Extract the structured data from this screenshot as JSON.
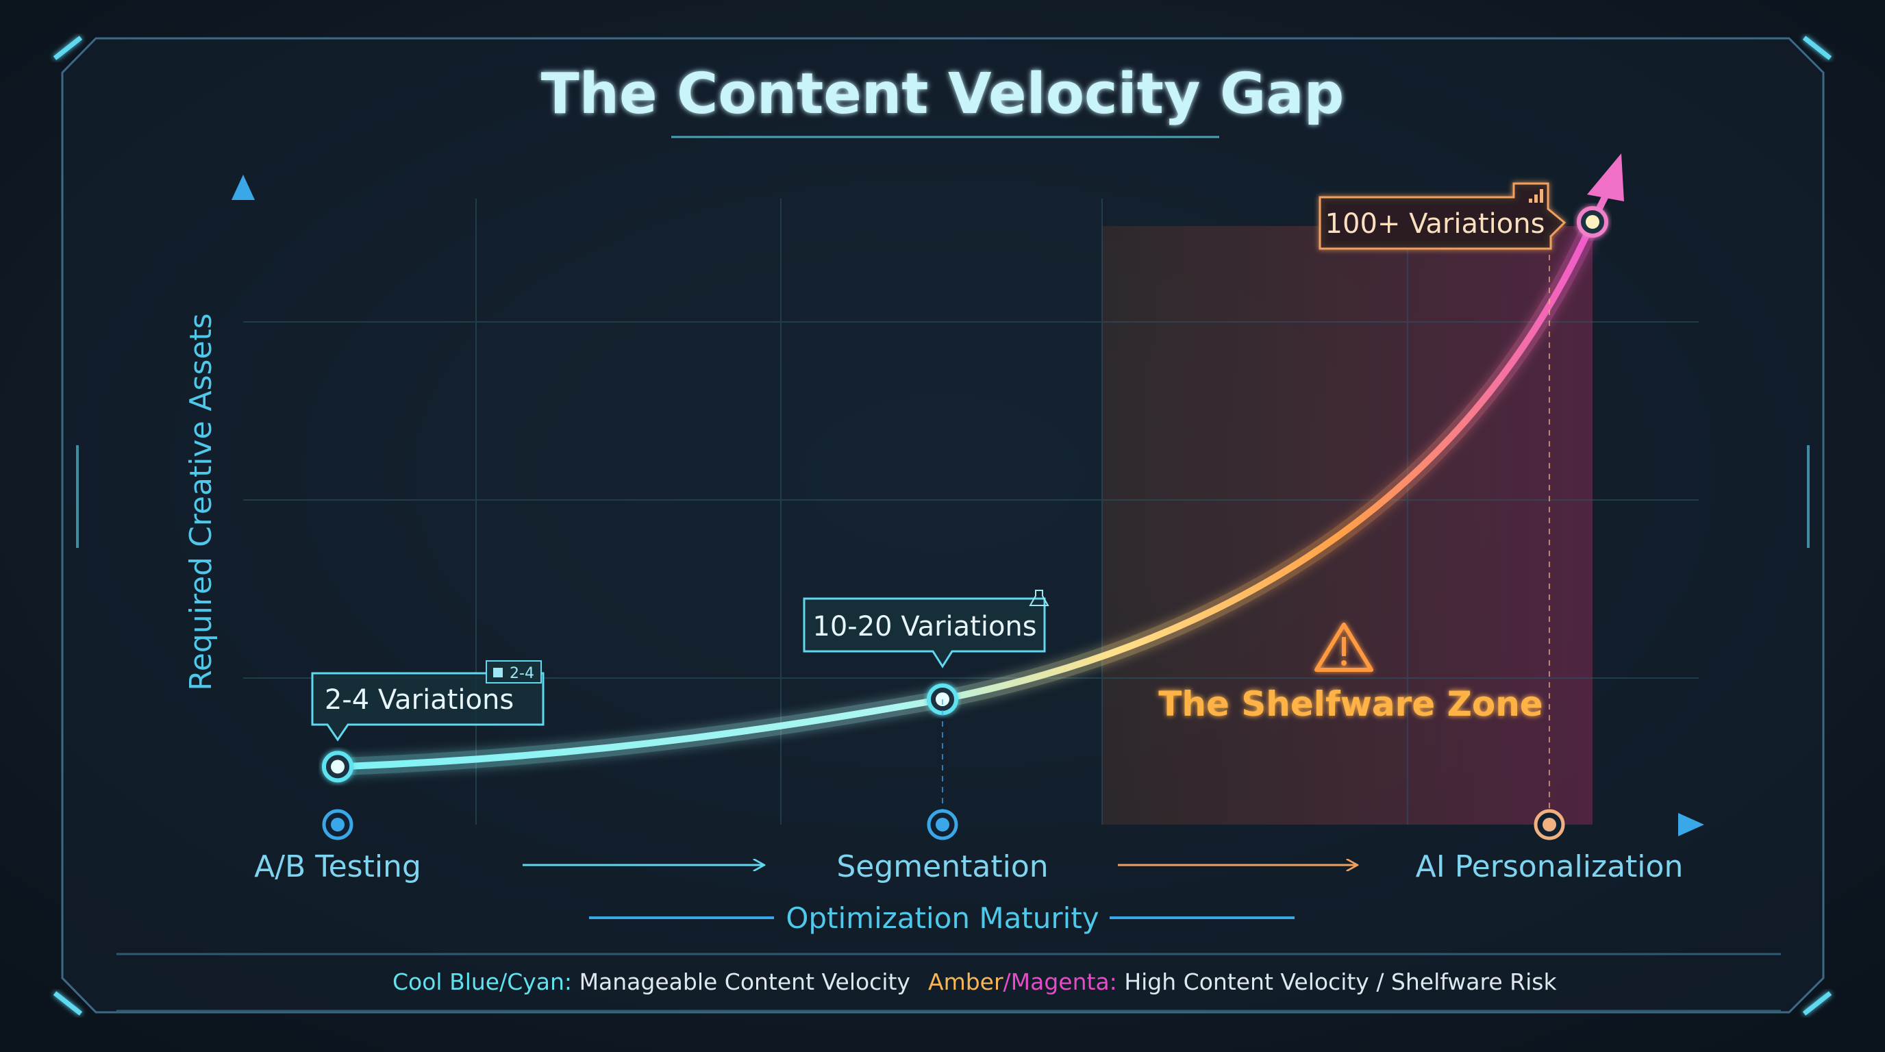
{
  "title": "The Content Velocity Gap",
  "colors": {
    "background": "#101c28",
    "cyan": "#5fe3f0",
    "blue": "#3aa8e8",
    "amber": "#f7b555",
    "magenta": "#e64bc8",
    "orange_text": "#ffb347",
    "white_text": "#dfe8ee"
  },
  "chart_data": {
    "type": "line",
    "title": "The Content Velocity Gap",
    "xlabel": "Optimization Maturity",
    "ylabel": "Required Creative Assets",
    "categories": [
      "A/B Testing",
      "Segmentation",
      "AI Personalization"
    ],
    "values": [
      3,
      15,
      100
    ],
    "point_labels": [
      "2-4 Variations",
      "10-20 Variations",
      "100+ Variations"
    ],
    "badge": "2-4",
    "zone_label": "The Shelfware Zone",
    "grid": true,
    "legend": {
      "placement": "bottom",
      "items": [
        {
          "key": "Cool Blue/Cyan:",
          "key_parts": [
            "Cool Blue/Cyan:"
          ],
          "text": "Manageable Content Velocity"
        },
        {
          "key_parts": [
            "Amber",
            "/Magenta:"
          ],
          "text": "High Content Velocity / Shelfware Risk"
        }
      ]
    },
    "icons": [
      "warning-icon",
      "bar-chart-icon",
      "flask-icon"
    ]
  }
}
